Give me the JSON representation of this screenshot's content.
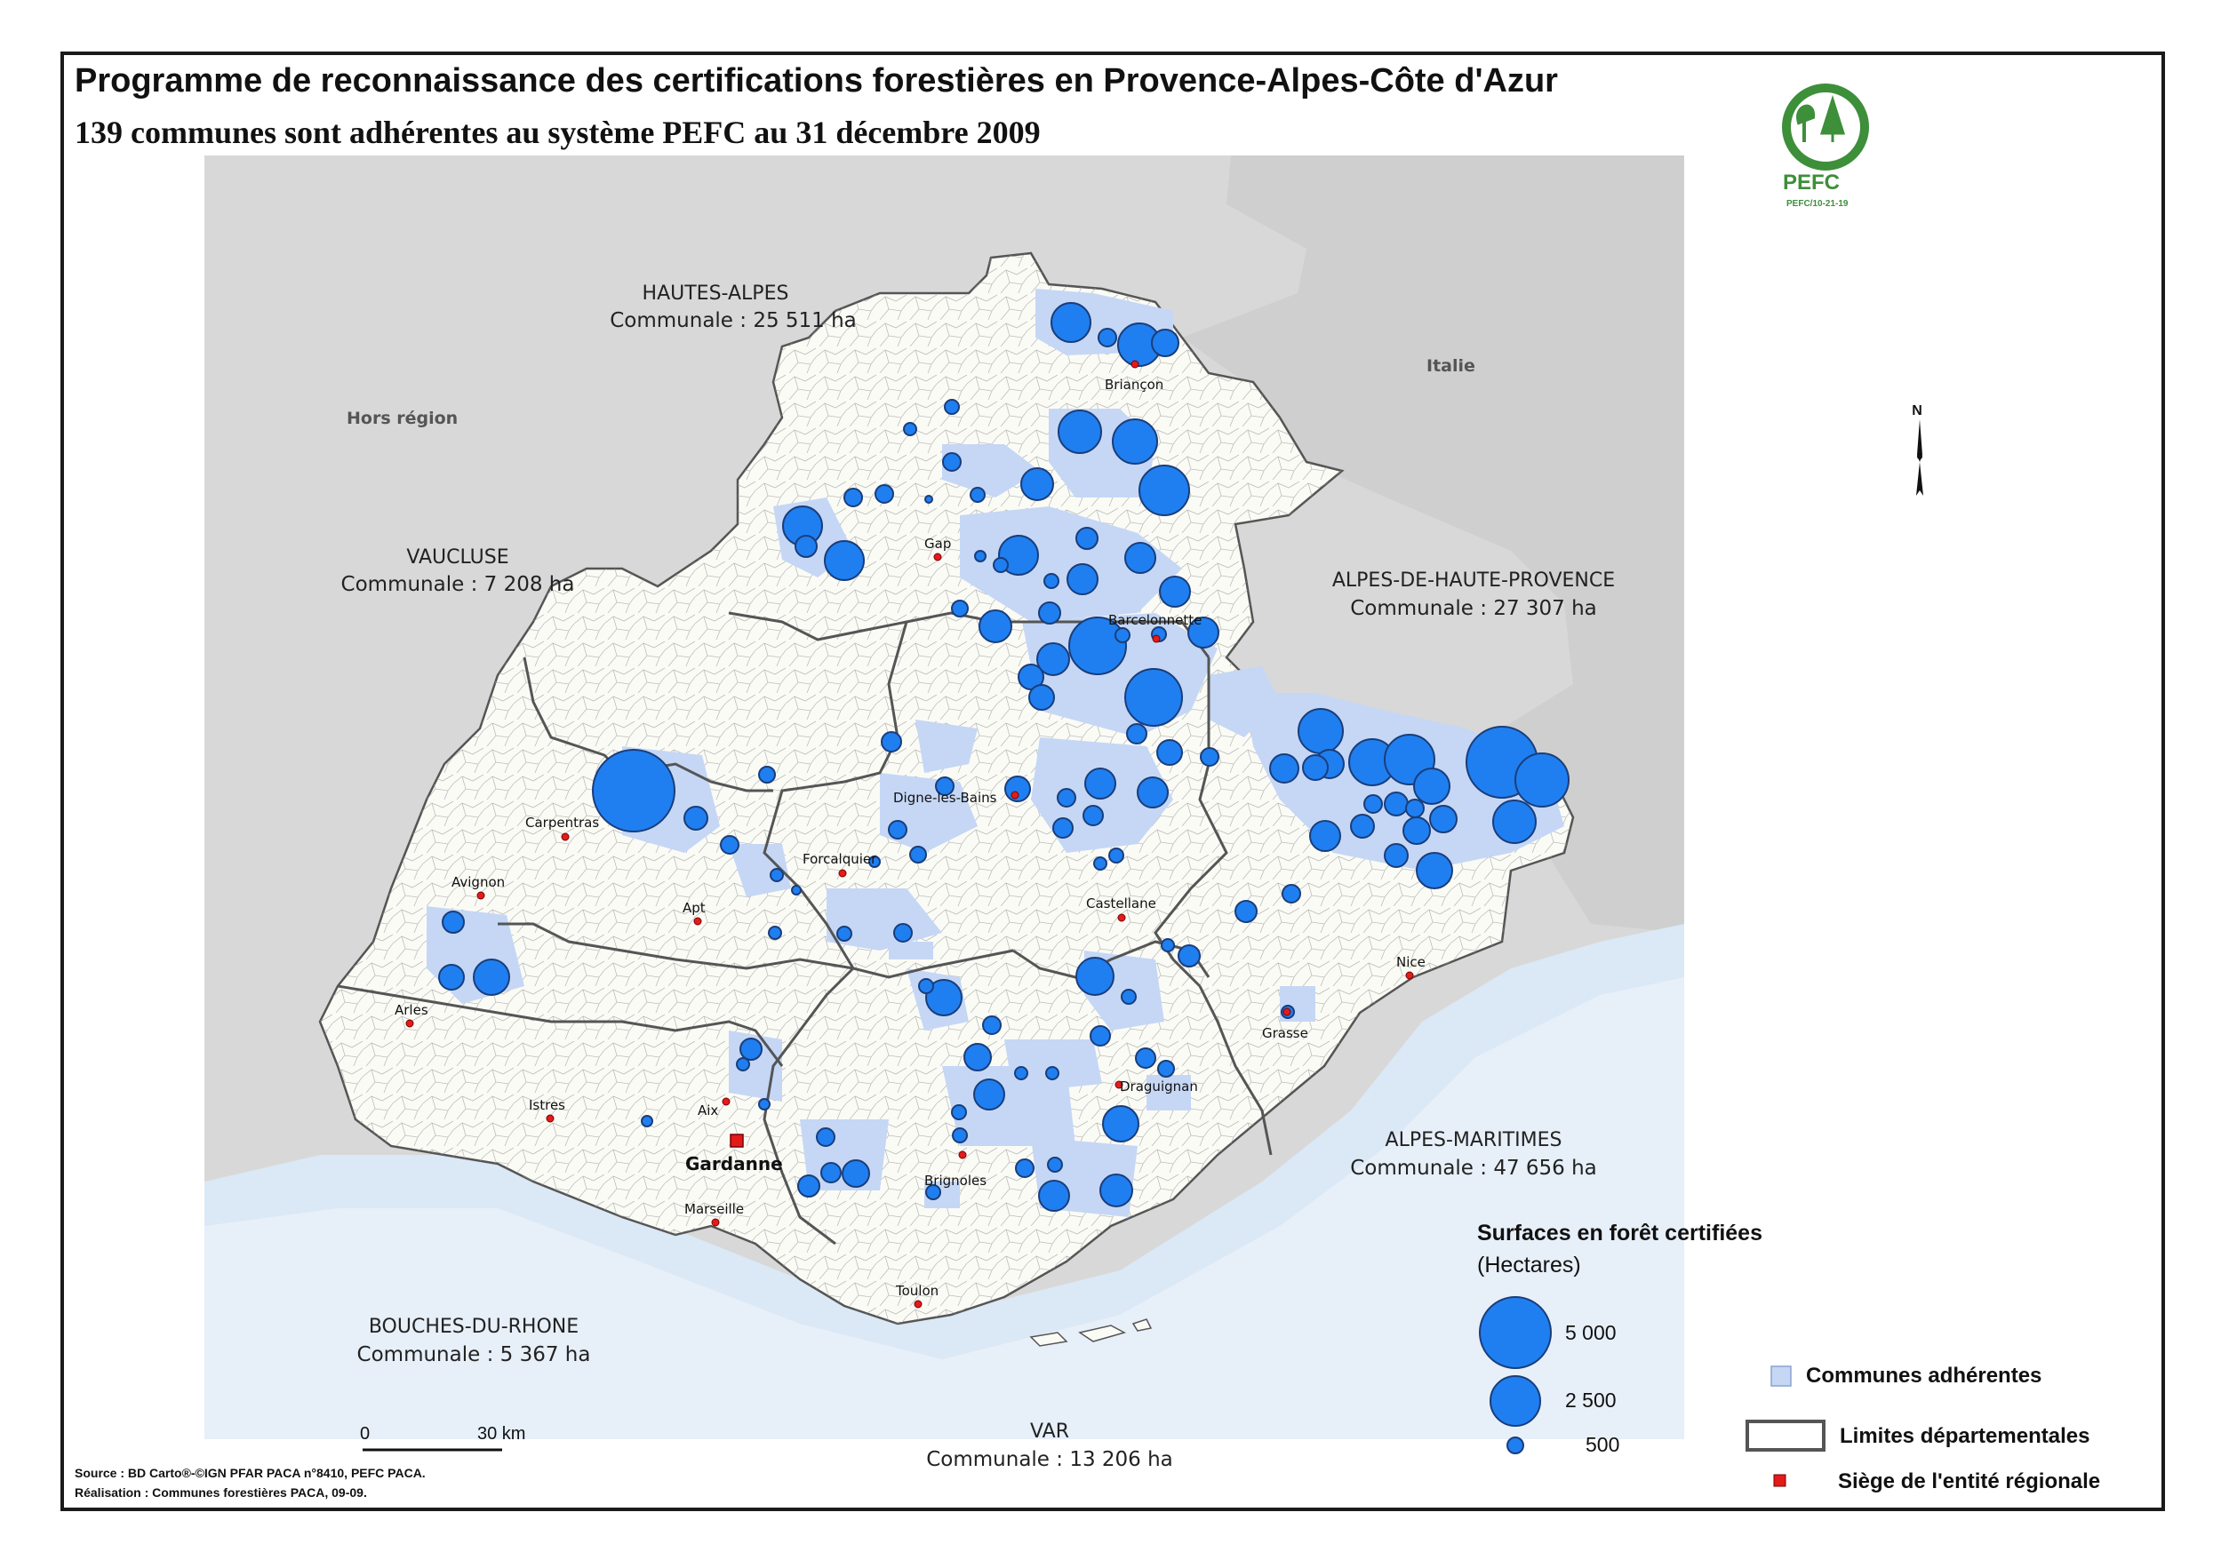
{
  "title": "Programme de reconnaissance des certifications forestières en Provence-Alpes-Côte d'Azur",
  "subtitle": "139 communes sont adhérentes au système PEFC au 31 décembre 2009",
  "logo": {
    "name": "PEFC",
    "code": "PEFC/10-21-19"
  },
  "colors": {
    "certified_circle": "#1f7ff0",
    "communes_adherentes": "#c5d7f5",
    "foreign": "#d8d8d8",
    "sea": "#dbe8f5",
    "land": "#fbfbf6"
  },
  "regions": {
    "hors_region": "Hors région",
    "italie": "Italie"
  },
  "departments": [
    {
      "name": "HAUTES-ALPES",
      "value": "Communale : 25 511 ha"
    },
    {
      "name": "VAUCLUSE",
      "value": "Communale : 7 208 ha"
    },
    {
      "name": "ALPES-DE-HAUTE-PROVENCE",
      "value": "Communale : 27 307 ha"
    },
    {
      "name": "ALPES-MARITIMES",
      "value": "Communale : 47 656 ha"
    },
    {
      "name": "BOUCHES-DU-RHONE",
      "value": "Communale : 5 367 ha"
    },
    {
      "name": "VAR",
      "value": "Communale : 13 206 ha"
    }
  ],
  "cities": [
    "Briançon",
    "Gap",
    "Barcelonnette",
    "Digne-les-Bains",
    "Carpentras",
    "Forcalquier",
    "Avignon",
    "Apt",
    "Castellane",
    "Nice",
    "Arles",
    "Grasse",
    "Istres",
    "Aix",
    "Draguignan",
    "Gardanne",
    "Brignoles",
    "Marseille",
    "Toulon"
  ],
  "north": "N",
  "scale": {
    "start": "0",
    "end": "30 km"
  },
  "legend": {
    "title": "Surfaces en forêt certifiées",
    "subtitle": "(Hectares)",
    "sizes": [
      "5 000",
      "2 500",
      "500"
    ],
    "communes": "Communes adhérentes",
    "limits": "Limites départementales",
    "siege": "Siège de l'entité régionale"
  },
  "source": "Source : BD Carto®-©IGN PFAR PACA n°8410, PEFC PACA.",
  "realisation": "Réalisation : Communes forestières PACA, 09-09."
}
